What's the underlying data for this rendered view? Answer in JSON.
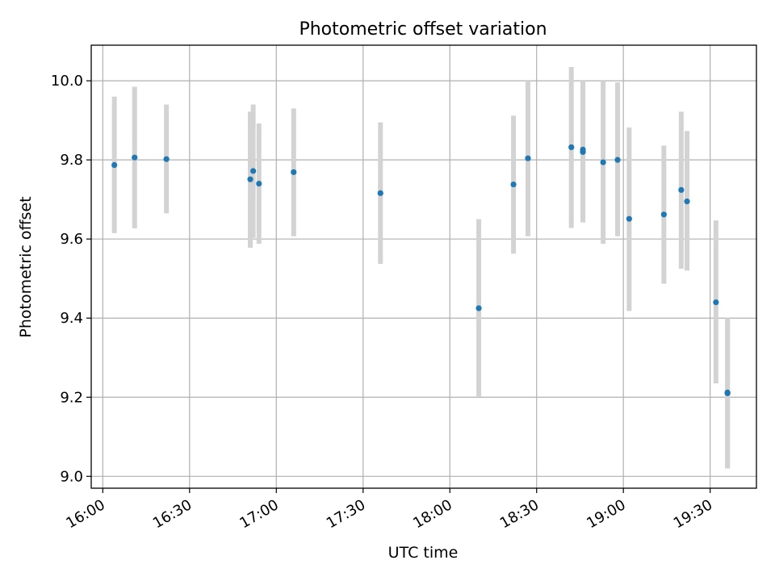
{
  "chart_data": {
    "type": "scatter",
    "title": "Photometric offset variation",
    "xlabel": "UTC time",
    "ylabel": "Photometric offset",
    "x_ticks": [
      "16:00",
      "16:30",
      "17:00",
      "17:30",
      "18:00",
      "18:30",
      "19:00",
      "19:30"
    ],
    "y_ticks": [
      "9.0",
      "9.2",
      "9.4",
      "9.6",
      "9.8",
      "10.0"
    ],
    "xlim": [
      "15:56",
      "19:46"
    ],
    "ylim": [
      8.97,
      10.09
    ],
    "grid": true,
    "series": [
      {
        "marker_color": "#1f77b4",
        "errorbar_color": "#d3d3d3",
        "points": [
          {
            "t": "16:04",
            "y": 9.787,
            "lo": 9.615,
            "hi": 9.96
          },
          {
            "t": "16:11",
            "y": 9.806,
            "lo": 9.627,
            "hi": 9.985
          },
          {
            "t": "16:22",
            "y": 9.802,
            "lo": 9.665,
            "hi": 9.94
          },
          {
            "t": "16:51",
            "y": 9.751,
            "lo": 9.578,
            "hi": 9.922
          },
          {
            "t": "16:52",
            "y": 9.772,
            "lo": 9.603,
            "hi": 9.94
          },
          {
            "t": "16:54",
            "y": 9.74,
            "lo": 9.588,
            "hi": 9.892
          },
          {
            "t": "17:06",
            "y": 9.769,
            "lo": 9.607,
            "hi": 9.93
          },
          {
            "t": "17:36",
            "y": 9.716,
            "lo": 9.537,
            "hi": 9.895
          },
          {
            "t": "18:10",
            "y": 9.425,
            "lo": 9.202,
            "hi": 9.65
          },
          {
            "t": "18:22",
            "y": 9.738,
            "lo": 9.563,
            "hi": 9.912
          },
          {
            "t": "18:27",
            "y": 9.804,
            "lo": 9.607,
            "hi": 10.0
          },
          {
            "t": "18:42",
            "y": 9.832,
            "lo": 9.628,
            "hi": 10.035
          },
          {
            "t": "18:46",
            "y": 9.826,
            "lo": 9.642,
            "hi": 10.0
          },
          {
            "t": "18:46",
            "y": 9.82,
            "lo": 9.642,
            "hi": 10.0
          },
          {
            "t": "18:53",
            "y": 9.794,
            "lo": 9.588,
            "hi": 10.0
          },
          {
            "t": "18:58",
            "y": 9.8,
            "lo": 9.607,
            "hi": 9.996
          },
          {
            "t": "19:02",
            "y": 9.651,
            "lo": 9.418,
            "hi": 9.882
          },
          {
            "t": "19:14",
            "y": 9.662,
            "lo": 9.487,
            "hi": 9.836
          },
          {
            "t": "19:20",
            "y": 9.724,
            "lo": 9.525,
            "hi": 9.922
          },
          {
            "t": "19:22",
            "y": 9.695,
            "lo": 9.52,
            "hi": 9.873
          },
          {
            "t": "19:32",
            "y": 9.44,
            "lo": 9.235,
            "hi": 9.647
          },
          {
            "t": "19:36",
            "y": 9.21,
            "lo": 9.02,
            "hi": 9.4
          },
          {
            "t": "19:36",
            "y": 9.212,
            "lo": 9.02,
            "hi": 9.4
          }
        ]
      }
    ]
  }
}
